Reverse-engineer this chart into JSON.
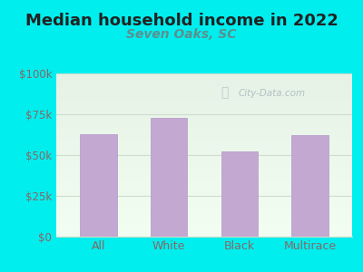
{
  "title": "Median household income in 2022",
  "subtitle": "Seven Oaks, SC",
  "categories": [
    "All",
    "White",
    "Black",
    "Multirace"
  ],
  "values": [
    63000,
    73000,
    52000,
    62000
  ],
  "bar_color": "#C3A8D1",
  "bar_edge_color": "#B8A0CC",
  "background_outer": "#00EEEE",
  "background_inner_top": "#E0EEE0",
  "background_inner_bottom": "#F0FFF0",
  "title_color": "#222222",
  "subtitle_color": "#5A9090",
  "tick_label_color": "#886666",
  "grid_color": "#CCDDCC",
  "ylim": [
    0,
    100000
  ],
  "yticks": [
    0,
    25000,
    50000,
    75000,
    100000
  ],
  "ytick_labels": [
    "$0",
    "$25k",
    "$50k",
    "$75k",
    "$100k"
  ],
  "watermark": "City-Data.com",
  "title_fontsize": 13,
  "subtitle_fontsize": 10,
  "tick_fontsize": 8.5,
  "xlabel_fontsize": 9
}
